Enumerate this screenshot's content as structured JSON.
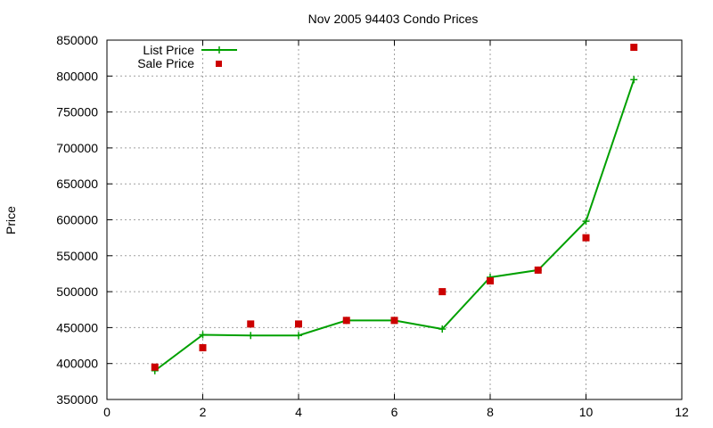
{
  "chart_data": {
    "type": "line",
    "title": "Nov 2005 94403 Condo Prices",
    "xlabel": "",
    "ylabel": "Price",
    "xlim": [
      0,
      12
    ],
    "ylim": [
      350000,
      850000
    ],
    "x_ticks": [
      0,
      2,
      4,
      6,
      8,
      10,
      12
    ],
    "y_ticks": [
      350000,
      400000,
      450000,
      500000,
      550000,
      600000,
      650000,
      700000,
      750000,
      800000,
      850000
    ],
    "grid": true,
    "legend_position": "top-left",
    "series": [
      {
        "name": "List Price",
        "style": "line-plus",
        "color": "#00a000",
        "x": [
          1,
          2,
          3,
          4,
          5,
          6,
          7,
          8,
          9,
          10,
          11
        ],
        "y": [
          390000,
          440000,
          439000,
          439000,
          460000,
          460000,
          448000,
          520000,
          530000,
          598000,
          795000
        ]
      },
      {
        "name": "Sale Price",
        "style": "square",
        "color": "#cc0000",
        "x": [
          1,
          2,
          3,
          4,
          5,
          6,
          7,
          8,
          9,
          10,
          11
        ],
        "y": [
          395000,
          422000,
          455000,
          455000,
          460000,
          460000,
          500000,
          515000,
          530000,
          575000,
          840000
        ]
      }
    ]
  }
}
